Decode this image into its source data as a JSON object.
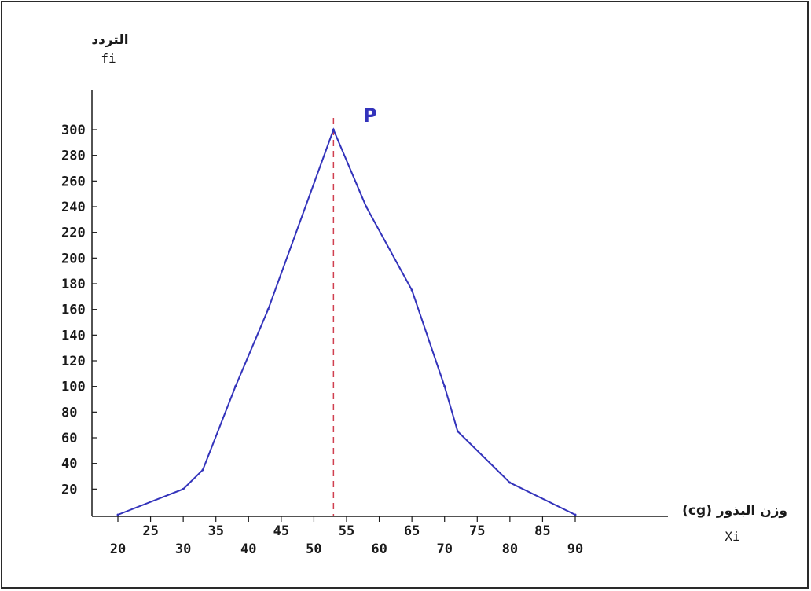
{
  "chart_data": {
    "type": "line",
    "ylabel": "التردد",
    "ylabel_symbol": "fi",
    "xlabel": "وزن البذور (cg)",
    "xlabel_symbol": "Xi",
    "peak_label": "P",
    "x_ticks": [
      "20",
      "25",
      "30",
      "35",
      "40",
      "45",
      "50",
      "55",
      "60",
      "65",
      "70",
      "75",
      "80",
      "85",
      "90"
    ],
    "y_ticks": [
      "20",
      "40",
      "60",
      "80",
      "100",
      "120",
      "140",
      "160",
      "180",
      "200",
      "220",
      "240",
      "260",
      "280",
      "300"
    ],
    "xlim": [
      20,
      90
    ],
    "ylim": [
      0,
      300
    ],
    "peak_x": 53,
    "series": [
      {
        "x": [
          20,
          30,
          33,
          38,
          43,
          53,
          58,
          65,
          70,
          72,
          80,
          90
        ],
        "y": [
          0,
          20,
          35,
          100,
          160,
          300,
          240,
          175,
          100,
          65,
          25,
          0
        ]
      }
    ],
    "colors": {
      "line": "#3333bb",
      "peak_guide": "#d04050",
      "axis": "#1a1a1a"
    }
  }
}
